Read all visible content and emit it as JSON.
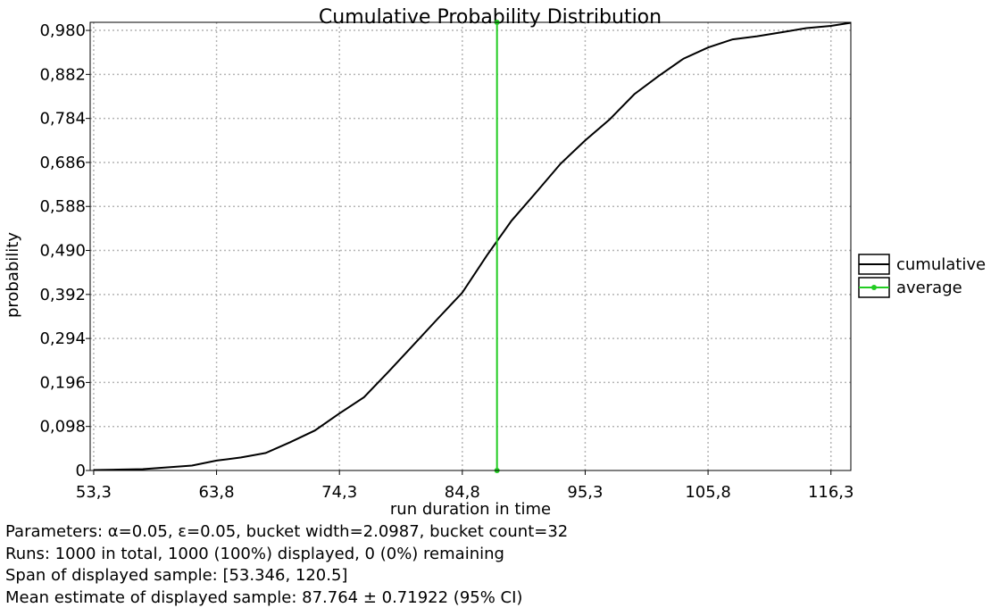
{
  "chart_data": {
    "type": "line",
    "title": "Cumulative Probability Distribution",
    "xlabel": "run duration in time",
    "ylabel": "probability",
    "xlim": [
      53.0,
      118.0
    ],
    "ylim": [
      0,
      0.998
    ],
    "x_ticks": [
      53.3,
      63.8,
      74.3,
      84.8,
      95.3,
      105.8,
      116.3
    ],
    "x_tick_labels": [
      "53,3",
      "63,8",
      "74,3",
      "84,8",
      "95,3",
      "105,8",
      "116,3"
    ],
    "y_ticks": [
      0,
      0.098,
      0.196,
      0.294,
      0.392,
      0.49,
      0.588,
      0.686,
      0.784,
      0.882,
      0.98
    ],
    "y_tick_labels": [
      "0",
      "0,098",
      "0,196",
      "0,294",
      "0,392",
      "0,490",
      "0,588",
      "0,686",
      "0,784",
      "0,882",
      "0,980"
    ],
    "grid": true,
    "legend_position": "right",
    "series": [
      {
        "name": "cumulative",
        "color": "#000000",
        "x": [
          53.3,
          55.4,
          57.5,
          59.6,
          61.7,
          63.8,
          65.9,
          68.0,
          70.1,
          72.2,
          74.3,
          76.4,
          78.5,
          80.6,
          82.7,
          84.8,
          86.9,
          89.0,
          91.1,
          93.2,
          95.3,
          97.4,
          99.5,
          101.6,
          103.7,
          105.8,
          107.9,
          110.0,
          112.1,
          114.2,
          116.3,
          118.0
        ],
        "y": [
          0.001,
          0.002,
          0.003,
          0.007,
          0.011,
          0.022,
          0.029,
          0.039,
          0.063,
          0.089,
          0.127,
          0.163,
          0.22,
          0.279,
          0.338,
          0.396,
          0.479,
          0.556,
          0.619,
          0.683,
          0.735,
          0.782,
          0.838,
          0.879,
          0.917,
          0.942,
          0.96,
          0.967,
          0.976,
          0.985,
          0.99,
          0.997
        ]
      },
      {
        "name": "average",
        "color": "#22cc22",
        "x": [
          87.764,
          87.764
        ],
        "y": [
          0,
          0.998
        ]
      }
    ]
  },
  "info": {
    "parameters": "Parameters: α=0.05, ε=0.05, bucket width=2.0987, bucket count=32",
    "runs": "Runs: 1000 in total, 1000 (100%) displayed, 0 (0%) remaining",
    "span": "Span of displayed sample: [53.346, 120.5]",
    "mean": "Mean estimate of displayed sample: 87.764 ± 0.71922 (95% CI)"
  }
}
